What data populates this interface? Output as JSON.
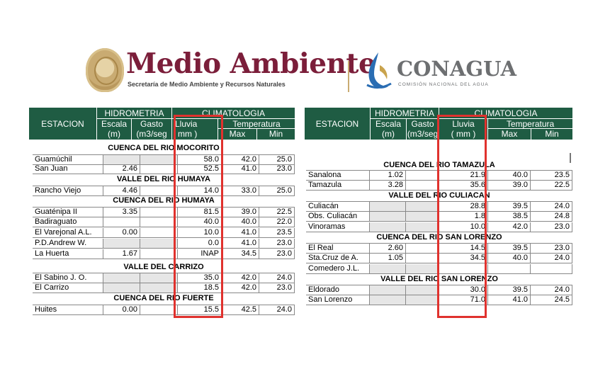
{
  "header": {
    "medio_ambiente_title": "Medio Ambiente",
    "medio_ambiente_subtitle": "Secretaría de Medio Ambiente y Recursos Naturales",
    "conagua_title": "CONAGUA",
    "conagua_subtitle": "COMISIÓN NACIONAL DEL AGUA"
  },
  "table_header": {
    "estacion": "ESTACION",
    "hidrometria": "HIDROMETRIA",
    "climatologia": "CLIMATOLOGIA",
    "escala": "Escala",
    "escala_unit": "(m)",
    "gasto": "Gasto",
    "gasto_unit": "(m3/seg",
    "lluvia": "Lluvia",
    "lluvia_unit_left": "mm )",
    "lluvia_unit_right": "( mm )",
    "temperatura": "Temperatura",
    "max": "Max",
    "min": "Min"
  },
  "colors": {
    "header_green": "#1f5c43",
    "highlight_red": "#e0322e",
    "brand_wine": "#7b1e3a"
  },
  "left_table": {
    "sections": [
      {
        "title": "CUENCA DEL RIO MOCORITO",
        "rows": [
          {
            "estacion": "Guamúchil",
            "escala": "",
            "gasto": "",
            "lluvia": "58.0",
            "max": "42.0",
            "min": "25.0"
          },
          {
            "estacion": "San  Juan",
            "escala": "2.46",
            "gasto": "",
            "lluvia": "52.5",
            "max": "41.0",
            "min": "23.0"
          }
        ]
      },
      {
        "title": "VALLE DEL RIO HUMAYA",
        "rows": [
          {
            "estacion": "Rancho Viejo",
            "escala": "4.46",
            "gasto": "",
            "lluvia": "14.0",
            "max": "33.0",
            "min": "25.0"
          }
        ]
      },
      {
        "title": "CUENCA DEL RIO HUMAYA",
        "rows": [
          {
            "estacion": "Guaténipa II",
            "escala": "3.35",
            "gasto": "",
            "lluvia": "81.5",
            "max": "39.0",
            "min": "22.5"
          },
          {
            "estacion": "Badiraguato",
            "escala": "",
            "gasto": "",
            "lluvia": "40.0",
            "max": "40.0",
            "min": "22.0"
          },
          {
            "estacion": "El Varejonal A.L.",
            "escala": "0.00",
            "gasto": "",
            "lluvia": "10.0",
            "max": "41.0",
            "min": "23.5"
          },
          {
            "estacion": "P.D.Andrew W.",
            "escala": "",
            "gasto": "",
            "lluvia": "0.0",
            "max": "41.0",
            "min": "23.0"
          },
          {
            "estacion": "La Huerta",
            "escala": "1.67",
            "gasto": "",
            "lluvia": "INAP",
            "max": "34.5",
            "min": "23.0"
          }
        ]
      },
      {
        "title": "VALLE DEL CARRIZO",
        "rows": [
          {
            "estacion": "El Sabino J. O.",
            "escala": "",
            "gasto": "",
            "lluvia": "35.0",
            "max": "42.0",
            "min": "24.0"
          },
          {
            "estacion": "El Carrizo",
            "escala": "",
            "gasto": "",
            "lluvia": "18.5",
            "max": "42.0",
            "min": "23.0"
          }
        ]
      },
      {
        "title": "CUENCA DEL RIO FUERTE",
        "rows": [
          {
            "estacion": "Huites",
            "escala": "0.00",
            "gasto": "",
            "lluvia": "15.5",
            "max": "42.5",
            "min": "24.0"
          }
        ]
      }
    ]
  },
  "right_table": {
    "sections": [
      {
        "title": "CUENCA DEL RIO TAMAZULA",
        "rows": [
          {
            "estacion": "Sanalona",
            "escala": "1.02",
            "gasto": "",
            "lluvia": "21.9",
            "max": "40.0",
            "min": "23.5"
          },
          {
            "estacion": "Tamazula",
            "escala": "3.28",
            "gasto": "",
            "lluvia": "35.6",
            "max": "39.0",
            "min": "22.5"
          }
        ]
      },
      {
        "title": "VALLE DEL RIO CULIACAN",
        "rows": [
          {
            "estacion": "Culiacán",
            "escala": "",
            "gasto": "",
            "lluvia": "28.8",
            "max": "39.5",
            "min": "24.0"
          },
          {
            "estacion": "Obs. Culiacán",
            "escala": "",
            "gasto": "",
            "lluvia": "1.8",
            "max": "38.5",
            "min": "24.8"
          },
          {
            "estacion": "Vinoramas",
            "escala": "",
            "gasto": "",
            "lluvia": "10.0",
            "max": "42.0",
            "min": "23.0"
          }
        ]
      },
      {
        "title": "CUENCA DEL RIO SAN LORENZO",
        "rows": [
          {
            "estacion": "El Real",
            "escala": "2.60",
            "gasto": "",
            "lluvia": "14.5",
            "max": "39.5",
            "min": "23.0"
          },
          {
            "estacion": "Sta.Cruz de A.",
            "escala": "1.05",
            "gasto": "",
            "lluvia": "34.5",
            "max": "40.0",
            "min": "24.0"
          },
          {
            "estacion": "Comedero J.L.",
            "escala": "",
            "gasto": "",
            "lluvia": "",
            "max": "",
            "min": ""
          }
        ]
      },
      {
        "title": "VALLE DEL RIO SAN LORENZO",
        "rows": [
          {
            "estacion": "Eldorado",
            "escala": "",
            "gasto": "",
            "lluvia": "30.0",
            "max": "39.5",
            "min": "24.0"
          },
          {
            "estacion": "San Lorenzo",
            "escala": "",
            "gasto": "",
            "lluvia": "71.0",
            "max": "41.0",
            "min": "24.5"
          }
        ]
      }
    ]
  }
}
